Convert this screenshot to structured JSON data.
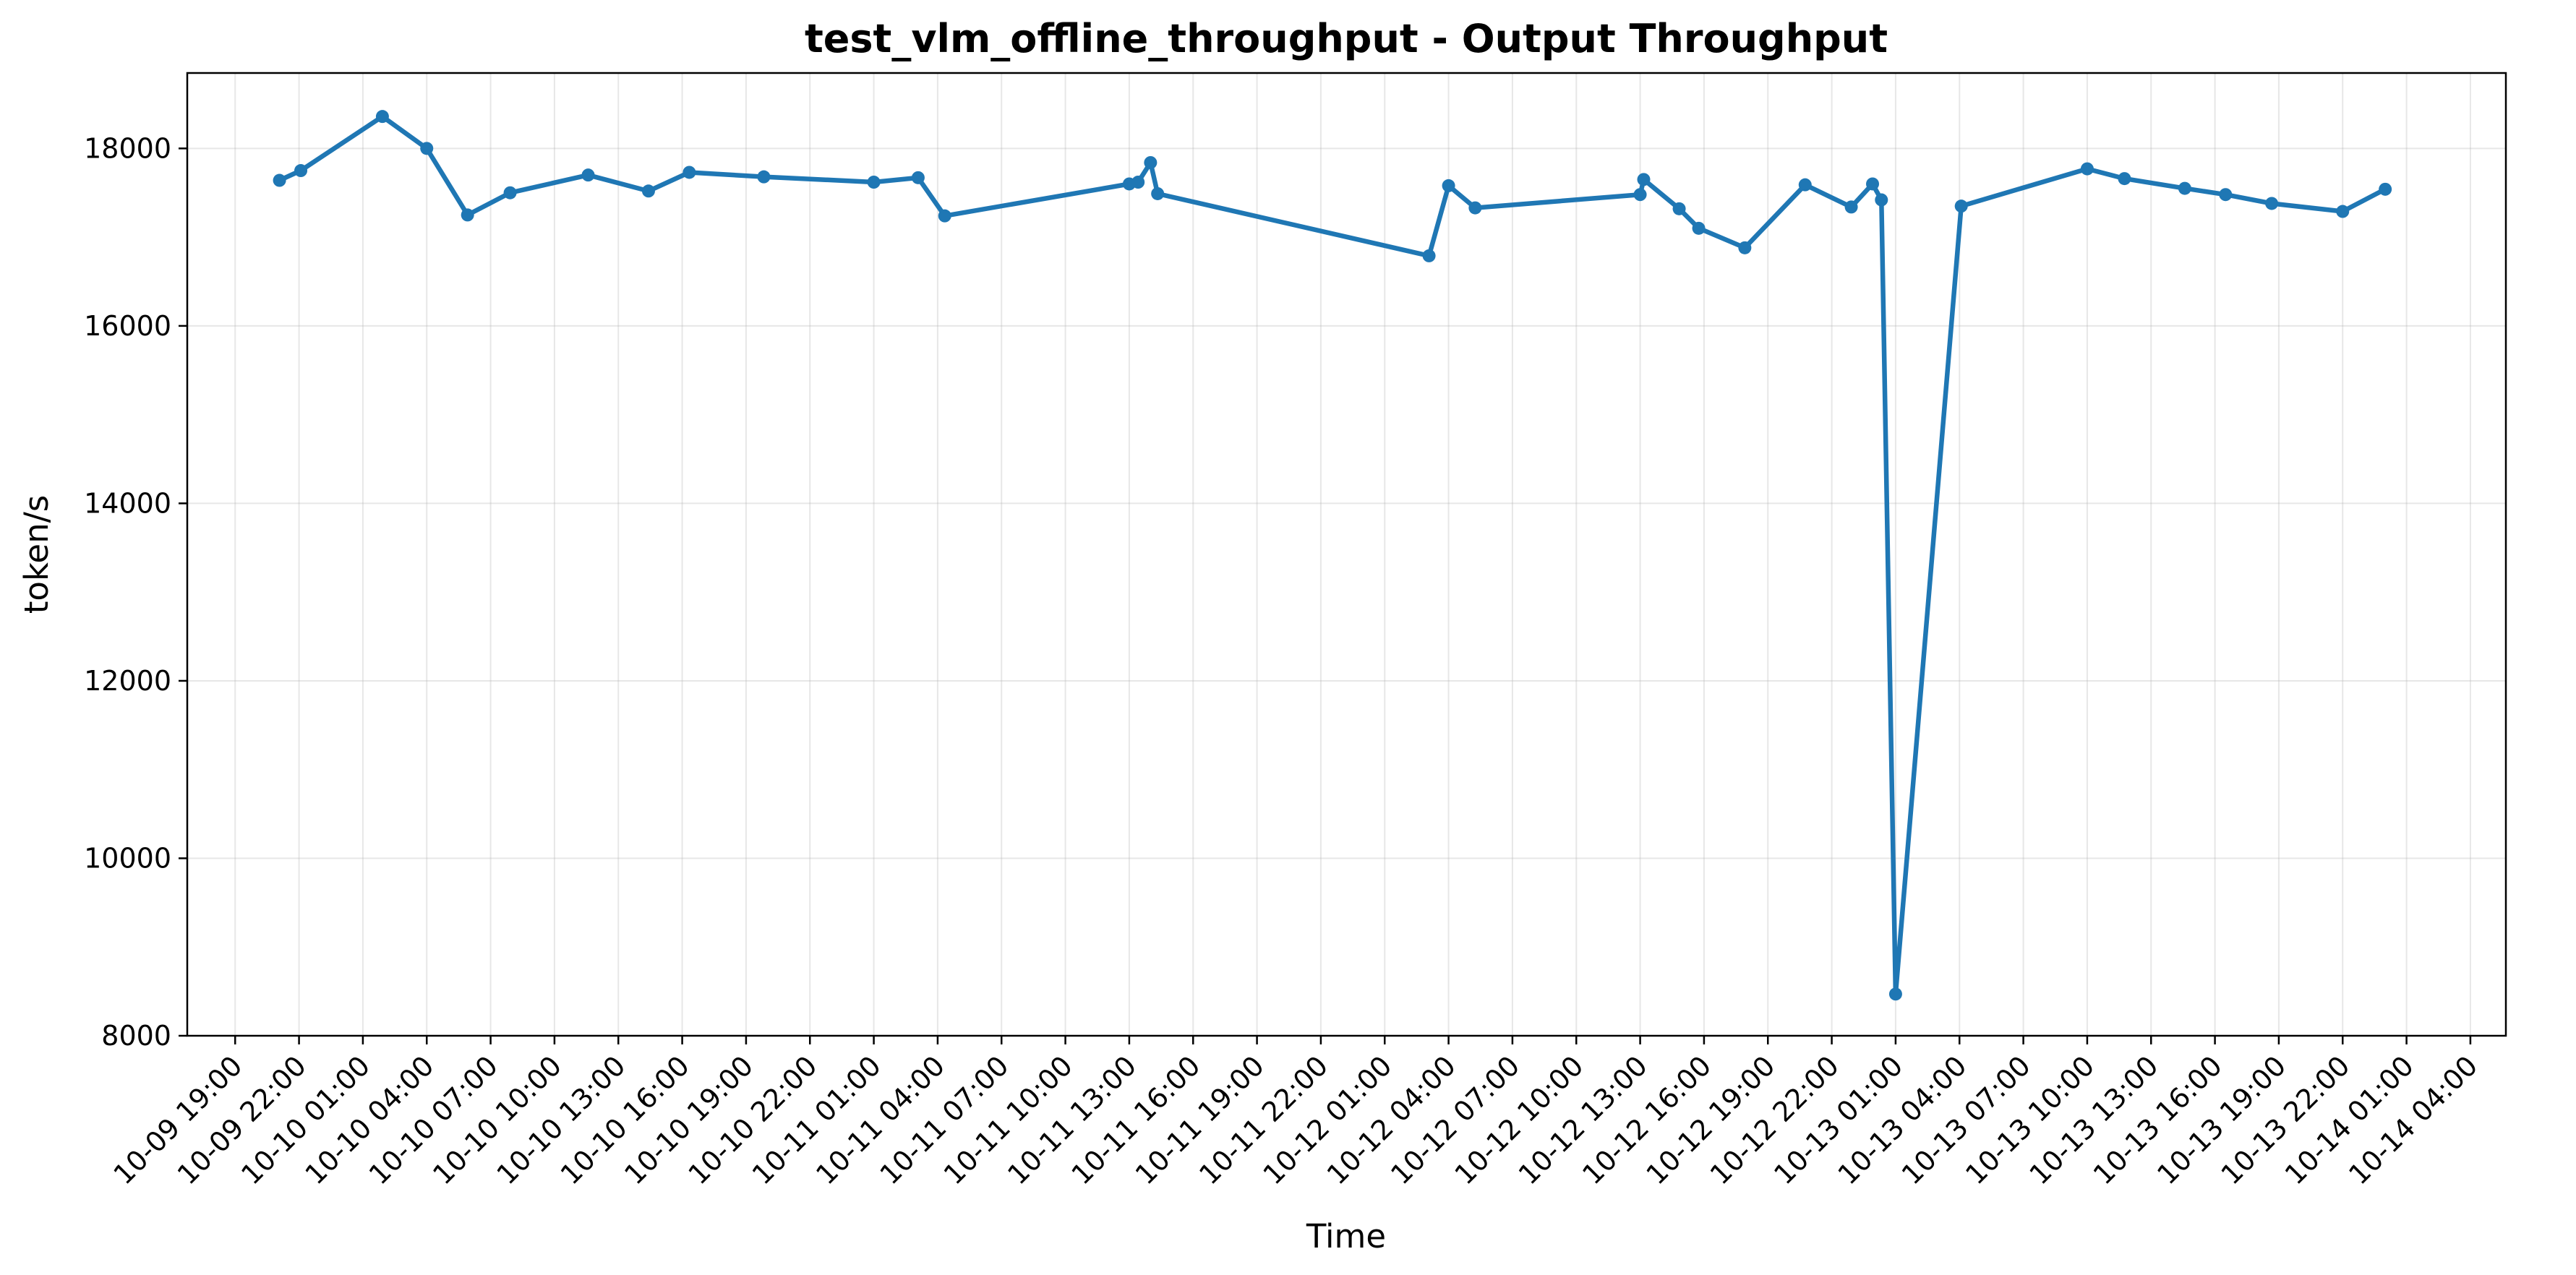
{
  "chart_data": {
    "type": "line",
    "title": "test_vlm_offline_throughput - Output Throughput",
    "xlabel": "Time",
    "ylabel": "token/s",
    "ylim": [
      8000,
      18850
    ],
    "xlim": [
      "2023-10-09 16:45",
      "2023-10-14 05:40"
    ],
    "yticks": [
      8000,
      10000,
      12000,
      14000,
      16000,
      18000
    ],
    "xticks": [
      {
        "t": "2023-10-09 19:00",
        "label": "10-09 19:00"
      },
      {
        "t": "2023-10-09 22:00",
        "label": "10-09 22:00"
      },
      {
        "t": "2023-10-10 01:00",
        "label": "10-10 01:00"
      },
      {
        "t": "2023-10-10 04:00",
        "label": "10-10 04:00"
      },
      {
        "t": "2023-10-10 07:00",
        "label": "10-10 07:00"
      },
      {
        "t": "2023-10-10 10:00",
        "label": "10-10 10:00"
      },
      {
        "t": "2023-10-10 13:00",
        "label": "10-10 13:00"
      },
      {
        "t": "2023-10-10 16:00",
        "label": "10-10 16:00"
      },
      {
        "t": "2023-10-10 19:00",
        "label": "10-10 19:00"
      },
      {
        "t": "2023-10-10 22:00",
        "label": "10-10 22:00"
      },
      {
        "t": "2023-10-11 01:00",
        "label": "10-11 01:00"
      },
      {
        "t": "2023-10-11 04:00",
        "label": "10-11 04:00"
      },
      {
        "t": "2023-10-11 07:00",
        "label": "10-11 07:00"
      },
      {
        "t": "2023-10-11 10:00",
        "label": "10-11 10:00"
      },
      {
        "t": "2023-10-11 13:00",
        "label": "10-11 13:00"
      },
      {
        "t": "2023-10-11 16:00",
        "label": "10-11 16:00"
      },
      {
        "t": "2023-10-11 19:00",
        "label": "10-11 19:00"
      },
      {
        "t": "2023-10-11 22:00",
        "label": "10-11 22:00"
      },
      {
        "t": "2023-10-12 01:00",
        "label": "10-12 01:00"
      },
      {
        "t": "2023-10-12 04:00",
        "label": "10-12 04:00"
      },
      {
        "t": "2023-10-12 07:00",
        "label": "10-12 07:00"
      },
      {
        "t": "2023-10-12 10:00",
        "label": "10-12 10:00"
      },
      {
        "t": "2023-10-12 13:00",
        "label": "10-12 13:00"
      },
      {
        "t": "2023-10-12 16:00",
        "label": "10-12 16:00"
      },
      {
        "t": "2023-10-12 19:00",
        "label": "10-12 19:00"
      },
      {
        "t": "2023-10-12 22:00",
        "label": "10-12 22:00"
      },
      {
        "t": "2023-10-13 01:00",
        "label": "10-13 01:00"
      },
      {
        "t": "2023-10-13 04:00",
        "label": "10-13 04:00"
      },
      {
        "t": "2023-10-13 07:00",
        "label": "10-13 07:00"
      },
      {
        "t": "2023-10-13 10:00",
        "label": "10-13 10:00"
      },
      {
        "t": "2023-10-13 13:00",
        "label": "10-13 13:00"
      },
      {
        "t": "2023-10-13 16:00",
        "label": "10-13 16:00"
      },
      {
        "t": "2023-10-13 19:00",
        "label": "10-13 19:00"
      },
      {
        "t": "2023-10-13 22:00",
        "label": "10-13 22:00"
      },
      {
        "t": "2023-10-14 01:00",
        "label": "10-14 01:00"
      },
      {
        "t": "2023-10-14 04:00",
        "label": "10-14 04:00"
      }
    ],
    "grid": true,
    "legend": "none",
    "color": "#1f77b4",
    "series": [
      {
        "x": [
          "2023-10-09 21:05",
          "2023-10-09 22:05",
          "2023-10-10 01:55",
          "2023-10-10 04:00",
          "2023-10-10 05:55",
          "2023-10-10 07:55",
          "2023-10-10 11:35",
          "2023-10-10 14:25",
          "2023-10-10 16:20",
          "2023-10-10 19:50",
          "2023-10-11 01:00",
          "2023-10-11 03:05",
          "2023-10-11 04:20",
          "2023-10-11 13:00",
          "2023-10-11 13:25",
          "2023-10-11 14:00",
          "2023-10-11 14:20",
          "2023-10-12 03:05",
          "2023-10-12 04:00",
          "2023-10-12 05:15",
          "2023-10-12 13:00",
          "2023-10-12 13:10",
          "2023-10-12 14:50",
          "2023-10-12 15:45",
          "2023-10-12 17:55",
          "2023-10-12 20:45",
          "2023-10-12 22:55",
          "2023-10-12 23:55",
          "2023-10-13 00:20",
          "2023-10-13 01:00",
          "2023-10-13 04:05",
          "2023-10-13 10:00",
          "2023-10-13 11:45",
          "2023-10-13 14:35",
          "2023-10-13 16:30",
          "2023-10-13 18:40",
          "2023-10-13 22:00",
          "2023-10-14 00:00"
        ],
        "values": [
          17640,
          17750,
          18360,
          18000,
          17250,
          17500,
          17700,
          17520,
          17730,
          17680,
          17620,
          17670,
          17240,
          17600,
          17620,
          17840,
          17490,
          16790,
          17580,
          17330,
          17480,
          17650,
          17320,
          17100,
          16880,
          17590,
          17340,
          17600,
          17420,
          8470,
          17350,
          17770,
          17660,
          17550,
          17480,
          17380,
          17290,
          17540
        ]
      }
    ]
  }
}
